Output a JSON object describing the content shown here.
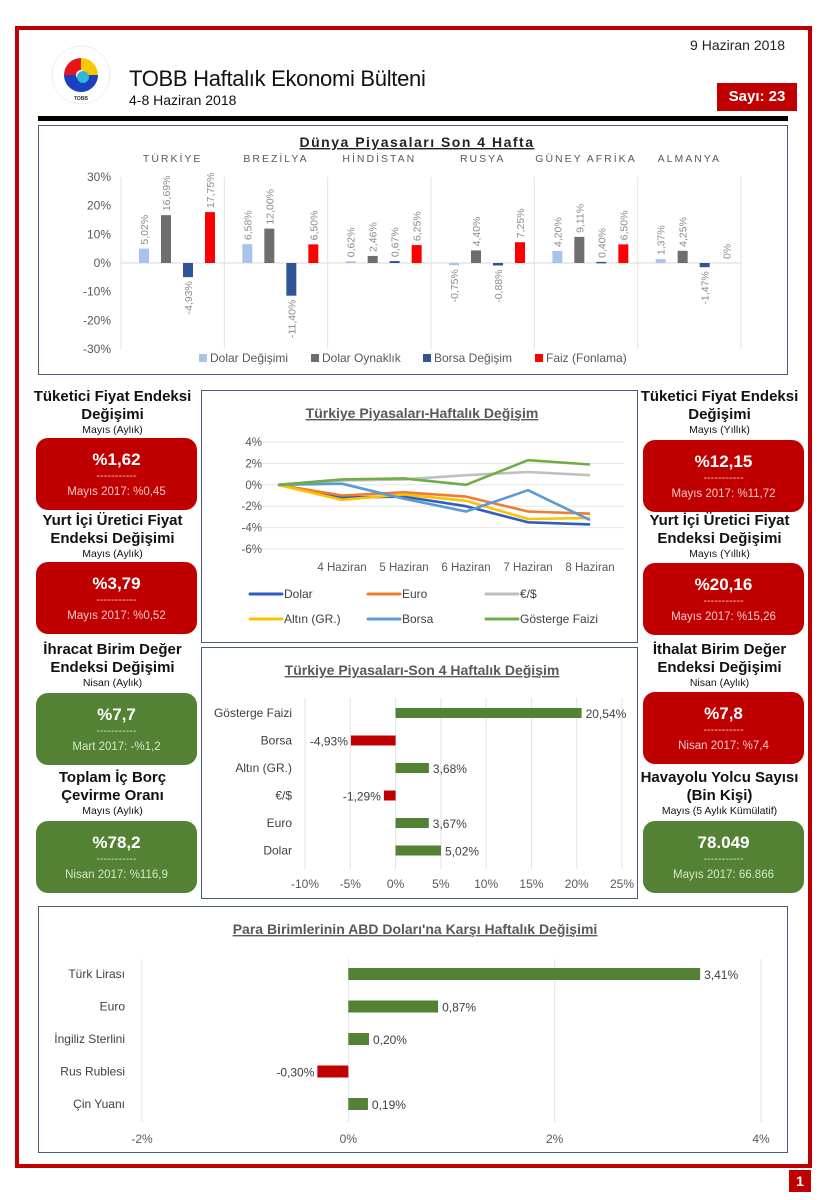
{
  "header": {
    "title": "TOBB Haftalık Ekonomi Bülteni",
    "subtitle": "4-8 Haziran 2018",
    "date": "9 Haziran 2018",
    "issue": "Sayı: 23",
    "logo_text": "TOBB",
    "logo_ring_text": "TÜRKİYE ODALAR VE BORSALAR BİRLİĞİ"
  },
  "page_number": "1",
  "colors": {
    "brand_red": "#c00000",
    "positive_green": "#548235",
    "dolar_degisimi": "#a9c4eb",
    "dolar_oynaklik": "#6e6e6e",
    "borsa_degisim": "#2f5597",
    "faiz": "#ff0000"
  },
  "kpis_left": [
    {
      "title_line1": "Tüketici Fiyat Endeksi",
      "title_line2": "Değişimi",
      "period": "Mayıs (Aylık)",
      "value": "%1,62",
      "separator": "-----------",
      "previous": "Mayıs 2017: %0,45",
      "status": "red"
    },
    {
      "title_line1": "Yurt İçi Üretici Fiyat",
      "title_line2": "Endeksi Değişimi",
      "period": "Mayıs (Aylık)",
      "value": "%3,79",
      "separator": "-----------",
      "previous": "Mayıs 2017: %0,52",
      "status": "red"
    },
    {
      "title_line1": "İhracat Birim Değer",
      "title_line2": "Endeksi Değişimi",
      "period": "Nisan (Aylık)",
      "value": "%7,7",
      "separator": "-----------",
      "previous": "Mart 2017: -%1,2",
      "status": "green"
    },
    {
      "title_line1": "Toplam İç Borç",
      "title_line2": "Çevirme Oranı",
      "period": "Mayıs (Aylık)",
      "value": "%78,2",
      "separator": "-----------",
      "previous": "Nisan 2017: %116,9",
      "status": "green"
    }
  ],
  "kpis_right": [
    {
      "title_line1": "Tüketici Fiyat Endeksi",
      "title_line2": "Değişimi",
      "period": "Mayıs (Yıllık)",
      "value": "%12,15",
      "separator": "-----------",
      "previous": "Mayıs 2017: %11,72",
      "status": "red"
    },
    {
      "title_line1": "Yurt İçi Üretici Fiyat",
      "title_line2": "Endeksi Değişimi",
      "period": "Mayıs (Yıllık)",
      "value": "%20,16",
      "separator": "-----------",
      "previous": "Mayıs 2017: %15,26",
      "status": "red"
    },
    {
      "title_line1": "İthalat Birim Değer",
      "title_line2": "Endeksi Değişimi",
      "period": "Nisan (Aylık)",
      "value": "%7,8",
      "separator": "-----------",
      "previous": "Nisan 2017: %7,4",
      "status": "red"
    },
    {
      "title_line1": "Havayolu Yolcu Sayısı",
      "title_line2": "(Bin Kişi)",
      "period": "Mayıs (5 Aylık Kümülatif)",
      "value": "78.049",
      "separator": "-----------",
      "previous": "Mayıs 2017: 66.866",
      "status": "green"
    }
  ],
  "chart_data": [
    {
      "id": "world",
      "type": "bar",
      "title": "Dünya Piyasaları Son 4 Hafta",
      "categories": [
        "TÜRKİYE",
        "BREZİLYA",
        "HİNDİSTAN",
        "RUSYA",
        "GÜNEY AFRİKA",
        "ALMANYA"
      ],
      "series": [
        {
          "name": "Dolar Değişimi",
          "color": "#a9c4eb",
          "values": [
            5.02,
            6.58,
            0.62,
            -0.75,
            4.2,
            1.37
          ],
          "labels": [
            "5,02%",
            "6,58%",
            "0,62%",
            "-0,75%",
            "4,20%",
            "1,37%"
          ]
        },
        {
          "name": "Dolar Oynaklık",
          "color": "#6e6e6e",
          "values": [
            16.69,
            12.0,
            2.46,
            4.4,
            9.11,
            4.25
          ],
          "labels": [
            "16,69%",
            "12,00%",
            "2,46%",
            "4,40%",
            "9,11%",
            "4,25%"
          ]
        },
        {
          "name": "Borsa Değişim",
          "color": "#2f5597",
          "values": [
            -4.93,
            -11.4,
            0.67,
            -0.88,
            0.4,
            -1.47
          ],
          "labels": [
            "-4,93%",
            "-11,40%",
            "0,67%",
            "-0,88%",
            "0,40%",
            "-1,47%"
          ]
        },
        {
          "name": "Faiz (Fonlama)",
          "color": "#ff0000",
          "values": [
            17.75,
            6.5,
            6.25,
            7.25,
            6.5,
            0
          ],
          "labels": [
            "17,75%",
            "6,50%",
            "6,25%",
            "7,25%",
            "6,50%",
            "0%"
          ]
        }
      ],
      "ylim": [
        -30,
        30
      ],
      "yticks": [
        30,
        20,
        10,
        0,
        -10,
        -20,
        -30
      ],
      "ytick_labels": [
        "30%",
        "20%",
        "10%",
        "0%",
        "-10%",
        "-20%",
        "-30%"
      ],
      "legend": "bottom",
      "xlabel": "",
      "ylabel": ""
    },
    {
      "id": "weekly",
      "type": "line",
      "title": "Türkiye Piyasaları-Haftalık Değişim",
      "categories": [
        "",
        "4 Haziran",
        "5 Haziran",
        "6 Haziran",
        "7 Haziran",
        "8 Haziran"
      ],
      "series": [
        {
          "name": "Dolar",
          "color": "#2e5fbf",
          "values": [
            0,
            -1.2,
            -1.1,
            -2.0,
            -3.5,
            -3.7
          ]
        },
        {
          "name": "Euro",
          "color": "#ed7d31",
          "values": [
            0,
            -1.0,
            -0.7,
            -1.1,
            -2.5,
            -2.7
          ]
        },
        {
          "name": "€/$",
          "color": "#bfbfbf",
          "values": [
            0,
            0.4,
            0.5,
            0.9,
            1.2,
            0.9
          ]
        },
        {
          "name": "Altın (GR.)",
          "color": "#ffc000",
          "values": [
            0,
            -1.4,
            -0.9,
            -1.5,
            -3.2,
            -3.1
          ]
        },
        {
          "name": "Borsa",
          "color": "#5b9bd5",
          "values": [
            0,
            0.1,
            -1.3,
            -2.5,
            -0.5,
            -3.3
          ]
        },
        {
          "name": "Gösterge Faizi",
          "color": "#70ad47",
          "values": [
            0,
            0.5,
            0.6,
            0.0,
            2.3,
            1.9
          ]
        }
      ],
      "ylim": [
        -6,
        4
      ],
      "yticks": [
        4,
        2,
        0,
        -2,
        -4,
        -6
      ],
      "ytick_labels": [
        "4%",
        "2%",
        "0%",
        "-2%",
        "-4%",
        "-6%"
      ],
      "legend": "bottom",
      "xlabel": "",
      "ylabel": ""
    },
    {
      "id": "fourweek",
      "type": "bar",
      "orientation": "horizontal",
      "title": "Türkiye Piyasaları-Son 4 Haftalık Değişim",
      "categories": [
        "Gösterge Faizi",
        "Borsa",
        "Altın (GR.)",
        "€/$",
        "Euro",
        "Dolar"
      ],
      "values": [
        20.54,
        -4.93,
        3.68,
        -1.29,
        3.67,
        5.02
      ],
      "labels": [
        "20,54%",
        "-4,93%",
        "3,68%",
        "-1,29%",
        "3,67%",
        "5,02%"
      ],
      "xlim": [
        -10,
        25
      ],
      "xticks": [
        -10,
        -5,
        0,
        5,
        10,
        15,
        20,
        25
      ],
      "xtick_labels": [
        "-10%",
        "-5%",
        "0%",
        "5%",
        "10%",
        "15%",
        "20%",
        "25%"
      ],
      "positive_color": "#548235",
      "negative_color": "#c00000",
      "xlabel": "",
      "ylabel": ""
    },
    {
      "id": "currency",
      "type": "bar",
      "orientation": "horizontal",
      "title": "Para Birimlerinin ABD Doları'na Karşı Haftalık Değişimi",
      "categories": [
        "Türk Lirası",
        "Euro",
        "İngiliz Sterlini",
        "Rus Rublesi",
        "Çin Yuanı"
      ],
      "values": [
        3.41,
        0.87,
        0.2,
        -0.3,
        0.19
      ],
      "labels": [
        "3,41%",
        "0,87%",
        "0,20%",
        "-0,30%",
        "0,19%"
      ],
      "xlim": [
        -2,
        4
      ],
      "xticks": [
        -2,
        0,
        2,
        4
      ],
      "xtick_labels": [
        "-2%",
        "0%",
        "2%",
        "4%"
      ],
      "positive_color": "#548235",
      "negative_color": "#c00000",
      "xlabel": "",
      "ylabel": ""
    }
  ]
}
